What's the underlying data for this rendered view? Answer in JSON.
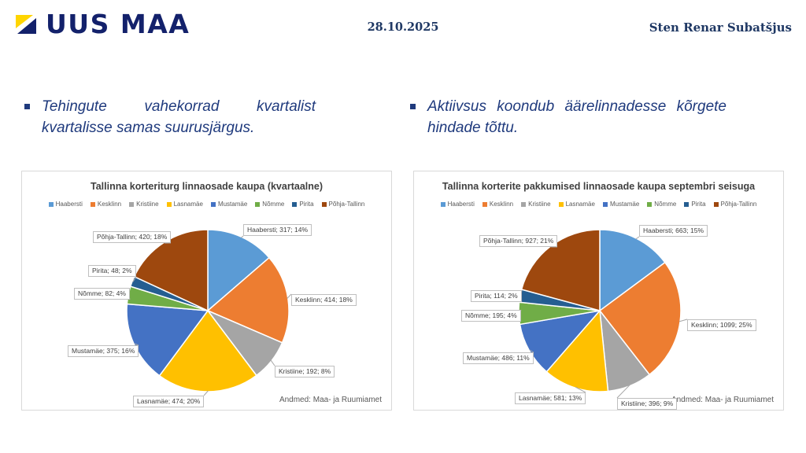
{
  "header": {
    "logo_text": "UUS MAA",
    "date": "28.10.2025",
    "author": "Sten Renar Subatšjus"
  },
  "bullets": [
    {
      "text": "Tehingute vahekorrad kvartalist kvartalisse samas suurusjärgus."
    },
    {
      "text": "Aktiivsus koondub äärelinnadesse kõrgete hindade tõttu."
    }
  ],
  "colors": {
    "logo_navy": "#13216B",
    "logo_yellow": "#FFD500",
    "bullet_blue": "#1F3A7D",
    "header_text_navy": "#1F3864",
    "panel_border": "#D9D9D9",
    "label_border": "#BFBFBF",
    "legend_text": "#595959"
  },
  "icons": {
    "logo": "uus-maa-flag-icon",
    "bullet": "square-bullet-icon"
  },
  "chart_data": [
    {
      "type": "pie",
      "title": "Tallinna korteriturg linnaosade kaupa (kvartaalne)",
      "categories": [
        "Haabersti",
        "Kesklinn",
        "Kristiine",
        "Lasnamäe",
        "Mustamäe",
        "Nõmme",
        "Pirita",
        "Põhja-Tallinn"
      ],
      "values": [
        317,
        414,
        192,
        474,
        375,
        82,
        48,
        420
      ],
      "percent_labels": [
        "14%",
        "18%",
        "8%",
        "20%",
        "16%",
        "4%",
        "2%",
        "18%"
      ],
      "colors": [
        "#5B9BD5",
        "#ED7D31",
        "#A5A5A5",
        "#FFC000",
        "#4472C4",
        "#70AD47",
        "#255E91",
        "#9E480E"
      ],
      "legend_position": "top",
      "label_format": "name; value; percent",
      "start_angle_deg": 0,
      "source": "Andmed: Maa- ja Ruumiamet"
    },
    {
      "type": "pie",
      "title": "Tallinna korterite pakkumised linnaosade kaupa septembri seisuga",
      "categories": [
        "Haabersti",
        "Kesklinn",
        "Kristiine",
        "Lasnamäe",
        "Mustamäe",
        "Nõmme",
        "Pirita",
        "Põhja-Tallinn"
      ],
      "values": [
        663,
        1099,
        396,
        581,
        486,
        195,
        114,
        927
      ],
      "percent_labels": [
        "15%",
        "25%",
        "9%",
        "13%",
        "11%",
        "4%",
        "2%",
        "21%"
      ],
      "colors": [
        "#5B9BD5",
        "#ED7D31",
        "#A5A5A5",
        "#FFC000",
        "#4472C4",
        "#70AD47",
        "#255E91",
        "#9E480E"
      ],
      "legend_position": "top",
      "label_format": "name; value; percent",
      "start_angle_deg": 0,
      "source": "Andmed: Maa- ja Ruumiamet"
    }
  ]
}
